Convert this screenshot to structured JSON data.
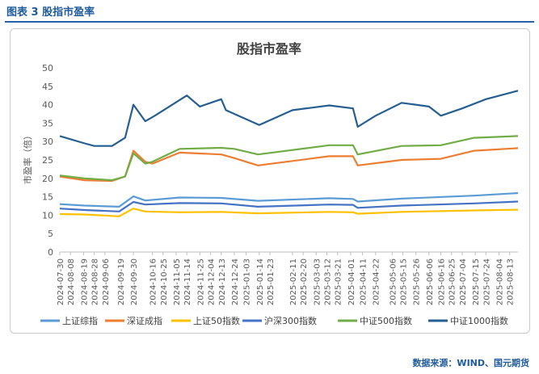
{
  "figure": {
    "title": "图表 3  股指市盈率"
  },
  "source": "数据来源：WIND、国元期货",
  "colors": {
    "上证综指": "#5b9bd5",
    "深证成指": "#ed7d31",
    "上证50指数": "#ffc000",
    "沪深300指数": "#4472c4",
    "中证500指数": "#70ad47",
    "中证1000指数": "#255e91"
  },
  "chart_data": {
    "type": "line",
    "title": "股指市盈率",
    "ylabel": "市盈率（倍）",
    "ylim": [
      0,
      50
    ],
    "yticks": [
      0,
      5,
      10,
      15,
      20,
      25,
      30,
      35,
      40,
      45,
      50
    ],
    "grid": false,
    "legend": "bottom",
    "x_range": [
      "2024-07-30",
      "2025-08-20"
    ],
    "x_tick_labels": [
      "2024-07-30",
      "2024-08-08",
      "2024-08-19",
      "2024-08-28",
      "2024-09-06",
      "2024-09-19",
      "2024-09-30",
      "2024-10-16",
      "2024-10-25",
      "2024-11-05",
      "2024-11-14",
      "2024-11-25",
      "2024-12-04",
      "2024-12-13",
      "2024-12-24",
      "2025-01-03",
      "2025-01-14",
      "2025-01-23",
      "2025-02-11",
      "2025-02-20",
      "2025-03-03",
      "2025-03-12",
      "2025-03-21",
      "2025-04-01",
      "2025-04-11",
      "2025-04-22",
      "2025-05-06",
      "2025-05-15",
      "2025-05-26",
      "2025-06-06",
      "2025-06-16",
      "2025-06-25",
      "2025-07-04",
      "2025-07-15",
      "2025-07-24",
      "2025-08-04",
      "2025-08-13"
    ],
    "series": [
      {
        "name": "上证综指",
        "points": [
          [
            "2024-07-30",
            13.0
          ],
          [
            "2024-08-20",
            12.6
          ],
          [
            "2024-09-18",
            12.3
          ],
          [
            "2024-09-30",
            15.1
          ],
          [
            "2024-10-10",
            14.0
          ],
          [
            "2024-11-08",
            14.8
          ],
          [
            "2024-12-13",
            14.7
          ],
          [
            "2025-01-13",
            13.9
          ],
          [
            "2025-03-14",
            14.6
          ],
          [
            "2025-04-03",
            14.4
          ],
          [
            "2025-04-07",
            13.7
          ],
          [
            "2025-05-14",
            14.5
          ],
          [
            "2025-07-14",
            15.3
          ],
          [
            "2025-08-20",
            16.0
          ]
        ]
      },
      {
        "name": "深证成指",
        "points": [
          [
            "2024-07-30",
            20.5
          ],
          [
            "2024-08-20",
            19.5
          ],
          [
            "2024-09-12",
            19.3
          ],
          [
            "2024-09-23",
            20.5
          ],
          [
            "2024-09-30",
            27.5
          ],
          [
            "2024-10-10",
            24.5
          ],
          [
            "2024-10-16",
            24.0
          ],
          [
            "2024-11-08",
            27.0
          ],
          [
            "2024-12-13",
            26.5
          ],
          [
            "2024-12-24",
            25.5
          ],
          [
            "2025-01-13",
            23.5
          ],
          [
            "2025-03-14",
            26.0
          ],
          [
            "2025-04-03",
            26.0
          ],
          [
            "2025-04-07",
            23.5
          ],
          [
            "2025-05-14",
            25.0
          ],
          [
            "2025-06-16",
            25.3
          ],
          [
            "2025-07-14",
            27.5
          ],
          [
            "2025-08-20",
            28.2
          ]
        ]
      },
      {
        "name": "上证50指数",
        "points": [
          [
            "2024-07-30",
            10.3
          ],
          [
            "2024-08-20",
            10.2
          ],
          [
            "2024-09-18",
            9.7
          ],
          [
            "2024-09-30",
            11.8
          ],
          [
            "2024-10-10",
            11.0
          ],
          [
            "2024-11-08",
            10.8
          ],
          [
            "2024-12-13",
            10.9
          ],
          [
            "2025-01-13",
            10.5
          ],
          [
            "2025-03-14",
            10.9
          ],
          [
            "2025-04-03",
            10.8
          ],
          [
            "2025-04-07",
            10.4
          ],
          [
            "2025-05-14",
            10.9
          ],
          [
            "2025-07-14",
            11.3
          ],
          [
            "2025-08-20",
            11.5
          ]
        ]
      },
      {
        "name": "沪深300指数",
        "points": [
          [
            "2024-07-30",
            11.8
          ],
          [
            "2024-08-20",
            11.4
          ],
          [
            "2024-09-18",
            11.0
          ],
          [
            "2024-09-30",
            13.6
          ],
          [
            "2024-10-10",
            12.9
          ],
          [
            "2024-11-08",
            13.3
          ],
          [
            "2024-12-13",
            13.2
          ],
          [
            "2025-01-13",
            12.3
          ],
          [
            "2025-03-14",
            12.9
          ],
          [
            "2025-04-03",
            12.8
          ],
          [
            "2025-04-07",
            12.0
          ],
          [
            "2025-05-14",
            12.6
          ],
          [
            "2025-07-14",
            13.2
          ],
          [
            "2025-08-20",
            13.7
          ]
        ]
      },
      {
        "name": "中证500指数",
        "points": [
          [
            "2024-07-30",
            20.8
          ],
          [
            "2024-08-20",
            20.0
          ],
          [
            "2024-09-12",
            19.5
          ],
          [
            "2024-09-23",
            20.5
          ],
          [
            "2024-09-30",
            26.8
          ],
          [
            "2024-10-10",
            24.0
          ],
          [
            "2024-10-16",
            24.5
          ],
          [
            "2024-11-08",
            28.0
          ],
          [
            "2024-12-13",
            28.3
          ],
          [
            "2024-12-24",
            28.0
          ],
          [
            "2025-01-13",
            26.5
          ],
          [
            "2025-03-14",
            29.0
          ],
          [
            "2025-04-03",
            29.0
          ],
          [
            "2025-04-07",
            26.5
          ],
          [
            "2025-05-14",
            28.8
          ],
          [
            "2025-06-16",
            29.0
          ],
          [
            "2025-07-14",
            31.0
          ],
          [
            "2025-08-20",
            31.5
          ]
        ]
      },
      {
        "name": "中证1000指数",
        "points": [
          [
            "2024-07-30",
            31.5
          ],
          [
            "2024-08-20",
            29.5
          ],
          [
            "2024-08-28",
            28.8
          ],
          [
            "2024-09-12",
            28.8
          ],
          [
            "2024-09-23",
            31.0
          ],
          [
            "2024-09-30",
            40.0
          ],
          [
            "2024-10-10",
            35.5
          ],
          [
            "2024-10-18",
            37.0
          ],
          [
            "2024-11-14",
            42.5
          ],
          [
            "2024-11-25",
            39.5
          ],
          [
            "2024-12-13",
            41.5
          ],
          [
            "2024-12-17",
            38.5
          ],
          [
            "2024-12-24",
            37.5
          ],
          [
            "2025-01-14",
            34.5
          ],
          [
            "2025-02-11",
            38.5
          ],
          [
            "2025-03-14",
            39.8
          ],
          [
            "2025-04-03",
            39.0
          ],
          [
            "2025-04-07",
            34.0
          ],
          [
            "2025-04-22",
            37.0
          ],
          [
            "2025-05-14",
            40.5
          ],
          [
            "2025-06-06",
            39.5
          ],
          [
            "2025-06-16",
            37.0
          ],
          [
            "2025-07-04",
            39.0
          ],
          [
            "2025-07-24",
            41.5
          ],
          [
            "2025-08-20",
            43.8
          ]
        ]
      }
    ]
  }
}
